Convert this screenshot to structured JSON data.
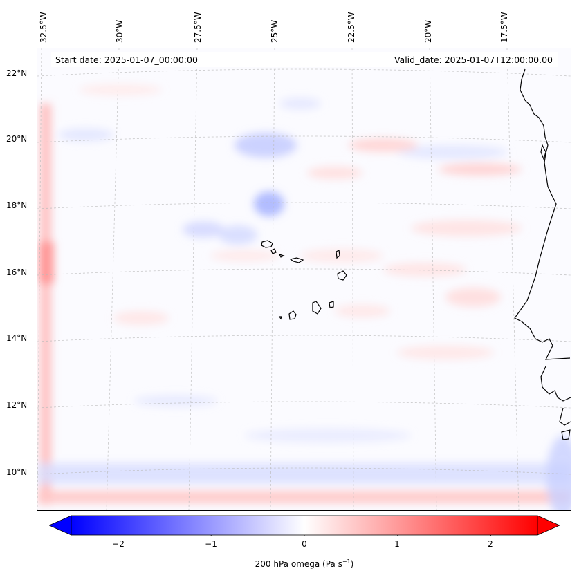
{
  "map": {
    "start_date_label": "Start date: 2025-01-07_00:00:00",
    "valid_date_label": "Valid_date: 2025-01-07T12:00:00.00",
    "lon_labels": [
      "32.5°W",
      "30°W",
      "27.5°W",
      "25°W",
      "22.5°W",
      "20°W",
      "17.5°W"
    ],
    "lat_labels": [
      "22°N",
      "20°N",
      "18°N",
      "16°N",
      "14°N",
      "12°N",
      "10°N"
    ],
    "colormap": "bwr",
    "extent": {
      "lon": [
        -33.0,
        -15.5
      ],
      "lat": [
        9.0,
        22.8
      ]
    }
  },
  "colorbar": {
    "title": "200 hPa omega (Pa s",
    "title_superscript": "−1",
    "title_close": ")",
    "tick_labels": [
      "−2",
      "−1",
      "0",
      "1",
      "2"
    ],
    "tick_values": [
      -2,
      -1,
      0,
      1,
      2
    ],
    "range": [
      -2.5,
      2.5
    ],
    "min_color": "#0000ff",
    "mid_color": "#ffffff",
    "max_color": "#ff0000"
  }
}
